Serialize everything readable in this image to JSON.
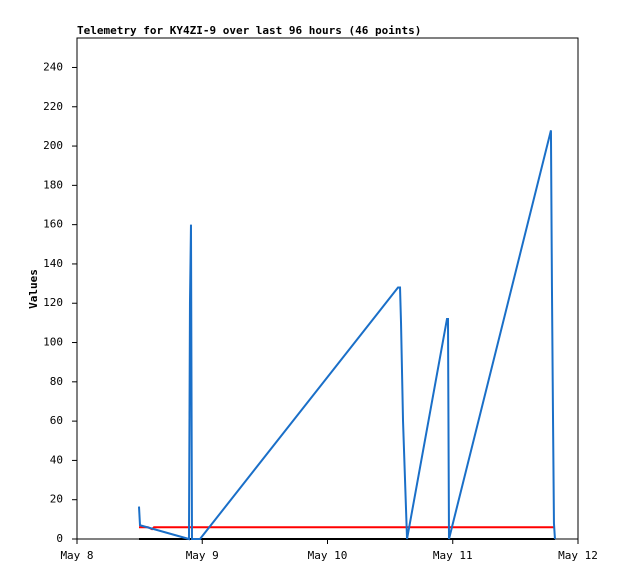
{
  "chart_data": {
    "type": "line",
    "title": "Telemetry for KY4ZI-9 over last 96 hours (46 points)",
    "y_label": "Values",
    "xlim": [
      8,
      12
    ],
    "xticks": [
      {
        "value": 8,
        "label": "May 8"
      },
      {
        "value": 9,
        "label": "May 9"
      },
      {
        "value": 10,
        "label": "May 10"
      },
      {
        "value": 11,
        "label": "May 11"
      },
      {
        "value": 12,
        "label": "May 12"
      }
    ],
    "ylim": [
      0,
      255
    ],
    "yticks": [
      0,
      20,
      40,
      60,
      80,
      100,
      120,
      140,
      160,
      180,
      200,
      220,
      240
    ],
    "series": [
      {
        "color": "#000000",
        "x": [
          8.495,
          11.816
        ],
        "values": [
          0,
          0
        ]
      },
      {
        "color": "#ff0000",
        "x": [
          8.495,
          8.567,
          8.599,
          8.615,
          11.816
        ],
        "values": [
          6,
          6,
          5,
          6,
          6
        ]
      },
      {
        "color": "#1a6fc8",
        "x": [
          8.495,
          8.503,
          8.894,
          8.902,
          8.91,
          8.918,
          8.982,
          10.563,
          10.579,
          10.587,
          10.603,
          10.635,
          10.954,
          10.962,
          10.97,
          11.784,
          11.792,
          11.8,
          11.808,
          11.816
        ],
        "values": [
          16.5,
          7,
          0,
          120,
          160,
          0,
          0,
          128,
          128,
          110,
          60,
          0,
          112,
          112,
          0,
          208,
          128,
          65,
          8,
          0
        ]
      }
    ]
  }
}
